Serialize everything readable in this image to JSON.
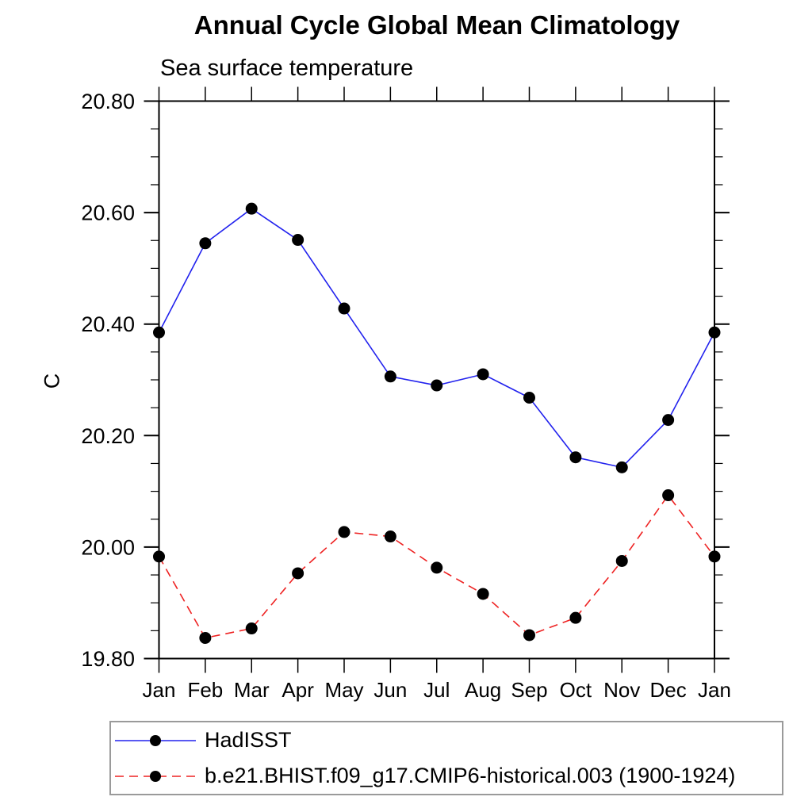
{
  "chart_data": {
    "type": "line",
    "title": "Annual Cycle Global Mean Climatology",
    "subtitle": "Sea surface temperature",
    "ylabel": "C",
    "categories": [
      "Jan",
      "Feb",
      "Mar",
      "Apr",
      "May",
      "Jun",
      "Jul",
      "Aug",
      "Sep",
      "Oct",
      "Nov",
      "Dec",
      "Jan"
    ],
    "series": [
      {
        "name": "HadISST",
        "line_color": "#2222ee",
        "line_style": "solid",
        "marker": "filled-circle",
        "marker_color": "#000000",
        "values": [
          20.385,
          20.545,
          20.607,
          20.551,
          20.428,
          20.306,
          20.29,
          20.31,
          20.268,
          20.161,
          20.143,
          20.228,
          20.385
        ]
      },
      {
        "name": "b.e21.BHIST.f09_g17.CMIP6-historical.003 (1900-1924)",
        "line_color": "#ee2222",
        "line_style": "dashed",
        "marker": "filled-circle",
        "marker_color": "#000000",
        "values": [
          19.983,
          19.837,
          19.854,
          19.953,
          20.027,
          20.019,
          19.963,
          19.916,
          19.842,
          19.873,
          19.975,
          20.093,
          19.983
        ]
      }
    ],
    "ylim": [
      19.8,
      20.8
    ],
    "y_major_ticks": [
      "19.80",
      "20.00",
      "20.20",
      "20.40",
      "20.60",
      "20.80"
    ],
    "y_minor_step": 0.05,
    "grid": false,
    "legend_position": "bottom-left-box",
    "axis_color": "#000000",
    "text_color": "#000000"
  }
}
